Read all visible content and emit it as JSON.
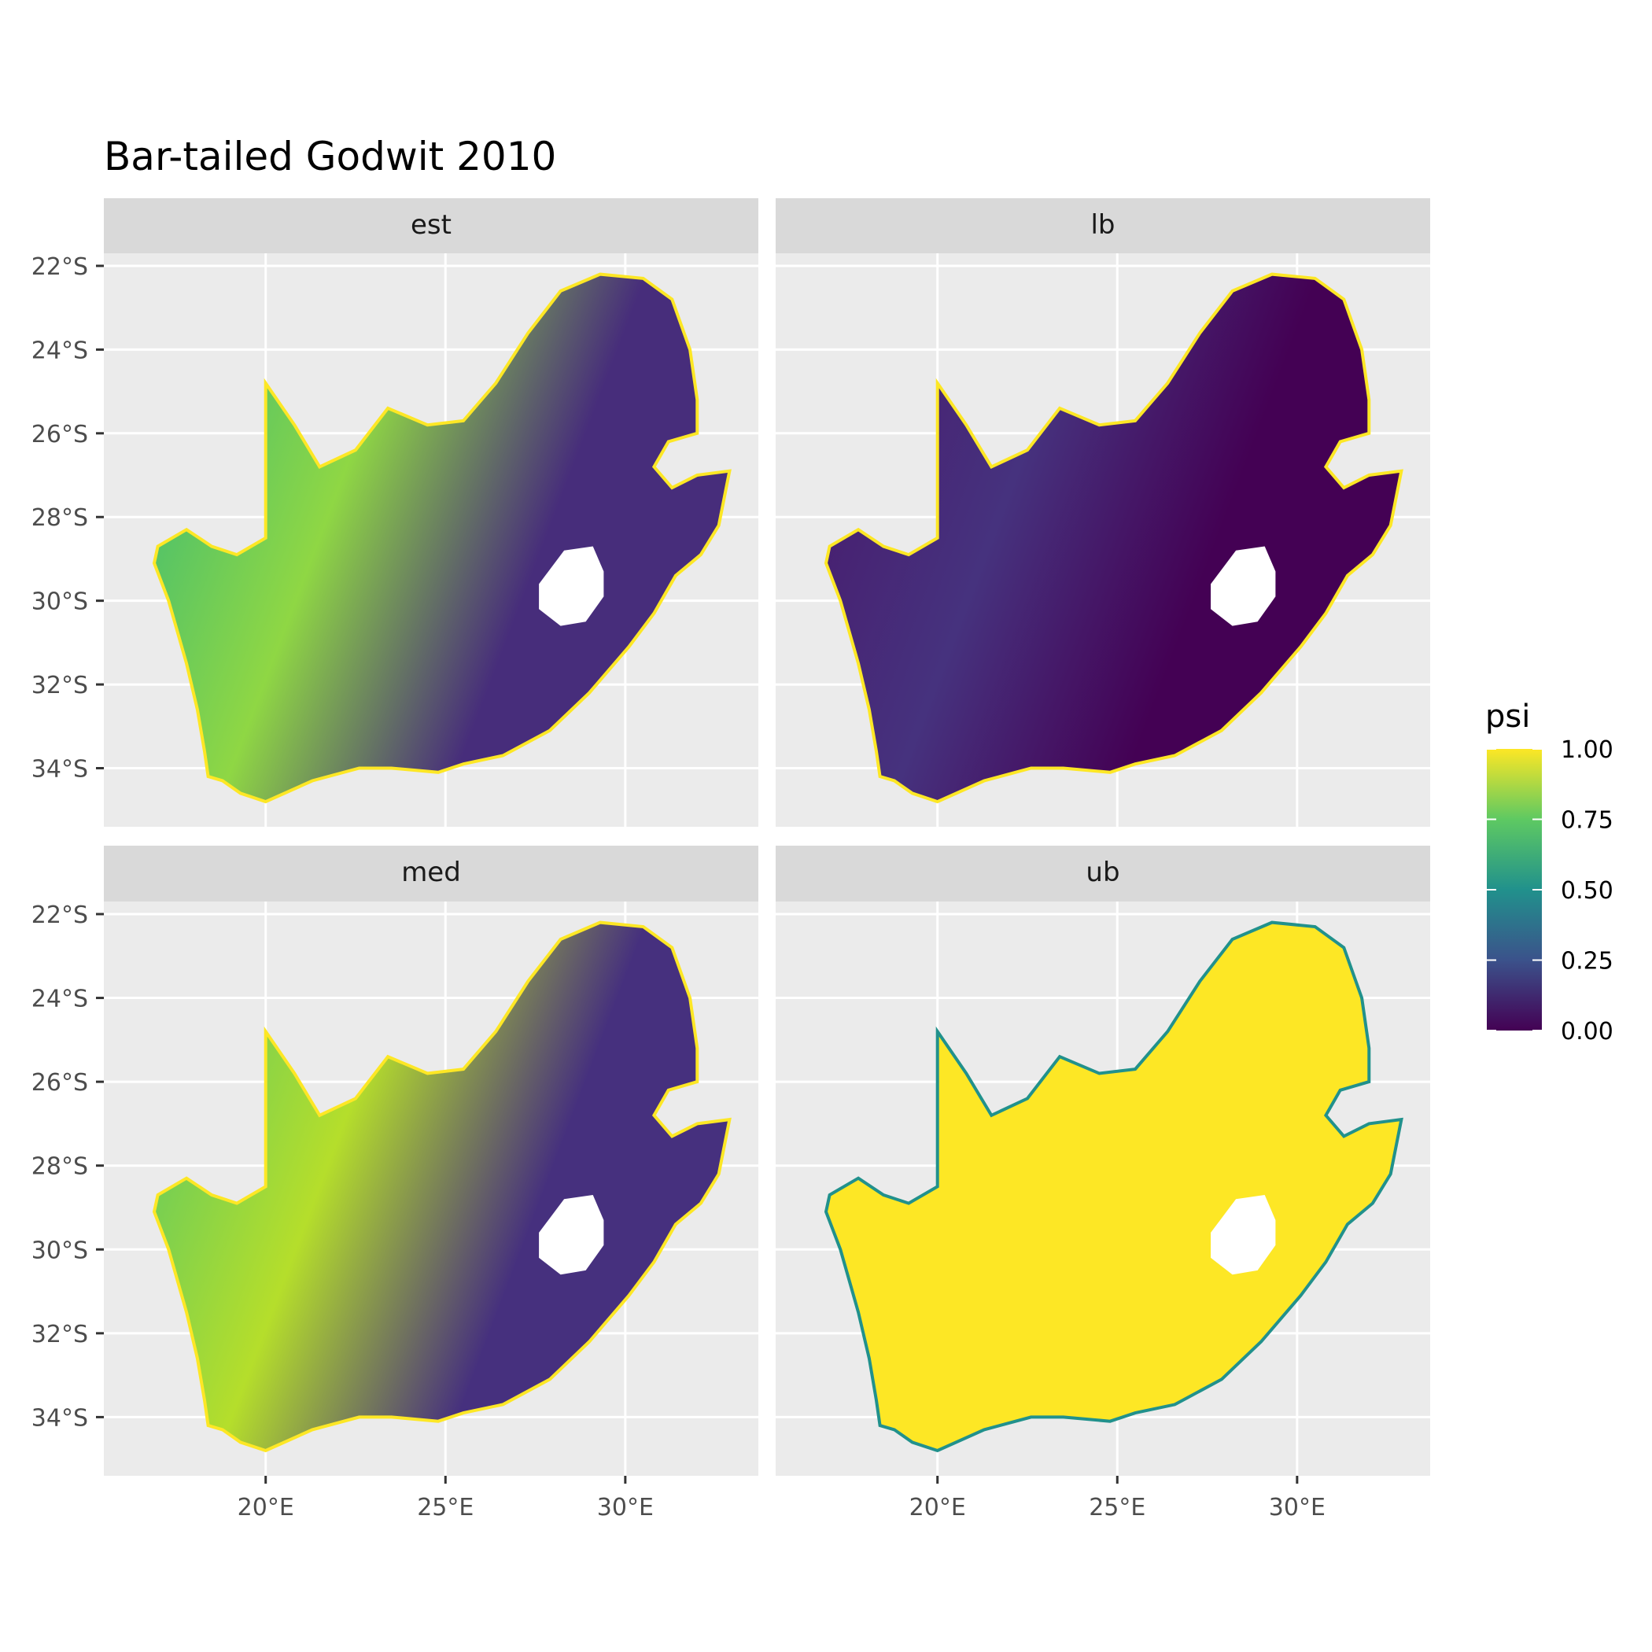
{
  "chart_data": {
    "type": "heatmap",
    "title": "Bar-tailed Godwit 2010",
    "panels": [
      "est",
      "lb",
      "med",
      "ub"
    ],
    "x_ticks": [
      "20°E",
      "25°E",
      "30°E"
    ],
    "x_tick_values": [
      20,
      25,
      30
    ],
    "y_ticks": [
      "22°S",
      "24°S",
      "26°S",
      "28°S",
      "30°S",
      "32°S",
      "34°S"
    ],
    "y_tick_values": [
      -22,
      -24,
      -26,
      -28,
      -30,
      -32,
      -34
    ],
    "xlim": [
      15.5,
      33.7
    ],
    "ylim": [
      -35.4,
      -21.7
    ],
    "grid": true,
    "legend": {
      "title": "psi",
      "position": "right",
      "labels": [
        "1.00",
        "0.75",
        "0.50",
        "0.25",
        "0.00"
      ],
      "values": [
        1.0,
        0.75,
        0.5,
        0.25,
        0.0
      ],
      "colormap": "viridis",
      "colors": [
        "#440154",
        "#3b528b",
        "#21918c",
        "#5ec962",
        "#fde725"
      ]
    },
    "colors": {
      "panel_background": "#ebebeb",
      "strip_background": "#d9d9d9",
      "gridline": "#ffffff",
      "hole": "#ffffff"
    }
  }
}
